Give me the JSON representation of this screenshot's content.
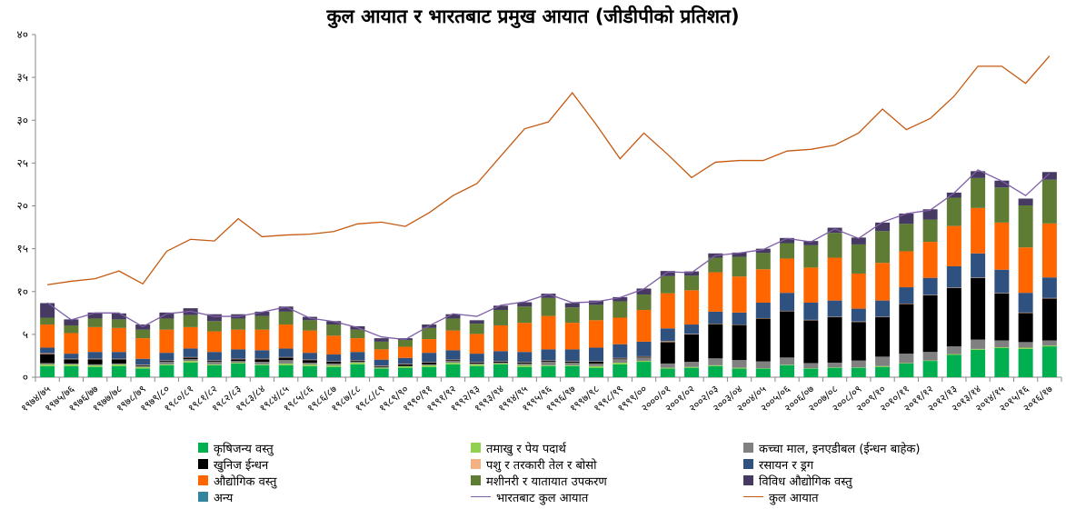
{
  "chart_data": {
    "type": "bar",
    "stacked": true,
    "title": "कुल आयात र भारतबाट प्रमुख आयात (जीडीपीको प्रतिशत)",
    "xlabel": "",
    "ylabel": "",
    "ylim": [
      0,
      40
    ],
    "yticks": [
      0,
      5,
      10,
      15,
      20,
      25,
      30,
      35,
      40
    ],
    "ytick_labels": [
      "०",
      "५",
      "१०",
      "१५",
      "२०",
      "२५",
      "३०",
      "३५",
      "४०"
    ],
    "grid": false,
    "legend_position": "bottom",
    "categories": [
      "१९७४/७५",
      "१९७५/७६",
      "१९७६/७७",
      "१९७७/७८",
      "१९७८/७९",
      "१९७९/८०",
      "१९८०/८१",
      "१९८१/८२",
      "१९८२/८३",
      "१९८३/८४",
      "१९८४/८५",
      "१९८५/८६",
      "१९८६/८७",
      "१९८७/८८",
      "१९८८/८९",
      "१९८९/९०",
      "१९९०/९१",
      "१९९१/९२",
      "१९९२/९३",
      "१९९३/९४",
      "१९९४/९५",
      "१९९५/९६",
      "१९९६/९७",
      "१९९७/९८",
      "१९९८/९९",
      "१९९९/००",
      "२०००/०१",
      "२००१/०२",
      "२००२/०३",
      "२००३/०४",
      "२००४/०५",
      "२००५/०६",
      "२००६/०७",
      "२००७/०८",
      "२००८/०९",
      "२००९/१०",
      "२०१०/११",
      "२०११/१२",
      "२०१२/१३",
      "२०१३/१४",
      "२०१४/१५",
      "२०१५/१६",
      "२०१६/१७"
    ],
    "series": [
      {
        "name": "कृषिजन्य वस्तु",
        "color": "#00b050",
        "values": [
          1.3,
          1.3,
          1.2,
          1.3,
          1.0,
          1.4,
          1.7,
          1.4,
          1.6,
          1.4,
          1.4,
          1.3,
          1.2,
          1.5,
          1.0,
          1.1,
          1.2,
          1.5,
          1.3,
          1.5,
          1.2,
          1.3,
          1.3,
          1.1,
          1.5,
          1.8,
          1.0,
          1.1,
          1.3,
          1.0,
          1.0,
          1.4,
          1.0,
          1.1,
          1.1,
          1.2,
          1.6,
          1.9,
          2.6,
          3.2,
          3.4,
          3.3,
          3.6
        ]
      },
      {
        "name": "तमाखु र पेय पदार्थ",
        "color": "#92d050",
        "values": [
          0.2,
          0.2,
          0.2,
          0.2,
          0.2,
          0.1,
          0.2,
          0.1,
          0.1,
          0.1,
          0.2,
          0.2,
          0.2,
          0.2,
          0.1,
          0.2,
          0.2,
          0.2,
          0.2,
          0.1,
          0.2,
          0.1,
          0.1,
          0.2,
          0.2,
          0.1,
          0.1,
          0.1,
          0.1,
          0.1,
          0.05,
          0.05,
          0.05,
          0.05,
          0.05,
          0.1,
          0.05,
          0.05,
          0.1,
          0.1,
          0.1,
          0.15,
          0.1
        ]
      },
      {
        "name": "कच्चा माल, इनएडीबल (ईन्धन बाहेक)",
        "color": "#808080",
        "values": [
          0.15,
          0.1,
          0.1,
          0.1,
          0.1,
          0.3,
          0.2,
          0.3,
          0.2,
          0.3,
          0.4,
          0.2,
          0.2,
          0.1,
          0.1,
          0.0,
          0.1,
          0.2,
          0.1,
          0.1,
          0.2,
          0.4,
          0.3,
          0.3,
          0.4,
          0.4,
          0.5,
          0.6,
          0.8,
          0.9,
          0.8,
          0.85,
          0.6,
          0.55,
          0.8,
          1.1,
          1.1,
          1.0,
          0.9,
          1.1,
          0.8,
          0.65,
          0.6
        ]
      },
      {
        "name": "खुनिज ईन्धन",
        "color": "#000000",
        "values": [
          1.05,
          0.5,
          0.6,
          0.5,
          0.1,
          0.1,
          0.2,
          0.1,
          0.2,
          0.3,
          0.3,
          0.3,
          0.2,
          0.1,
          0.1,
          0.2,
          0.2,
          0.1,
          0.1,
          0.1,
          0.1,
          0.1,
          0.1,
          0.2,
          0.1,
          0.1,
          2.5,
          3.2,
          4.0,
          4.1,
          5.0,
          5.4,
          5.0,
          5.3,
          4.5,
          4.6,
          5.8,
          6.6,
          6.8,
          7.2,
          5.5,
          3.4,
          4.9
        ]
      },
      {
        "name": "पशु र तरकारी तेल र बोसो",
        "color": "#f4b183",
        "values": [
          0.1,
          0.05,
          0.05,
          0.05,
          0.05,
          0.05,
          0.05,
          0.05,
          0.05,
          0.05,
          0.05,
          0.05,
          0.05,
          0.05,
          0.05,
          0.05,
          0.05,
          0.05,
          0.05,
          0.05,
          0.05,
          0.05,
          0.05,
          0.05,
          0.05,
          0.05,
          0.1,
          0.05,
          0.05,
          0.05,
          0.05,
          0.05,
          0.05,
          0.05,
          0.05,
          0.05,
          0.05,
          0.05,
          0.05,
          0.05,
          0.05,
          0.05,
          0.05
        ]
      },
      {
        "name": "रसायन र ड्रग",
        "color": "#2f5180",
        "values": [
          0.65,
          0.6,
          0.8,
          0.8,
          0.7,
          0.9,
          1.0,
          1.0,
          1.1,
          1.0,
          1.0,
          0.8,
          0.8,
          1.0,
          0.7,
          0.7,
          1.1,
          1.1,
          1.0,
          1.2,
          1.2,
          1.3,
          1.4,
          1.6,
          1.6,
          1.7,
          1.5,
          1.1,
          1.4,
          1.4,
          1.8,
          2.1,
          2.0,
          1.9,
          1.5,
          1.9,
          1.9,
          2.0,
          2.5,
          2.8,
          2.7,
          2.3,
          2.4
        ]
      },
      {
        "name": "औद्योगिक वस्तु",
        "color": "#ff6600",
        "values": [
          2.7,
          2.4,
          2.9,
          2.8,
          2.4,
          2.7,
          2.5,
          2.4,
          2.3,
          2.4,
          2.8,
          2.6,
          2.2,
          1.6,
          1.2,
          1.3,
          1.6,
          2.3,
          2.3,
          3.0,
          3.4,
          3.9,
          3.1,
          3.2,
          3.1,
          3.7,
          4.1,
          4.0,
          4.6,
          4.2,
          3.9,
          4.0,
          4.1,
          5.0,
          4.1,
          4.4,
          4.2,
          4.2,
          4.7,
          5.3,
          5.5,
          5.3,
          6.3
        ]
      },
      {
        "name": "मशीनरी र यातायात उपकरण",
        "color": "#5e7c33",
        "values": [
          0.8,
          0.9,
          1.0,
          1.0,
          1.0,
          1.3,
          1.4,
          1.2,
          1.3,
          1.6,
          1.5,
          1.2,
          1.3,
          1.0,
          0.9,
          0.8,
          1.3,
          1.4,
          1.2,
          1.8,
          1.9,
          2.1,
          1.8,
          1.8,
          1.9,
          1.8,
          2.0,
          1.7,
          1.7,
          2.3,
          1.9,
          1.8,
          2.6,
          2.9,
          3.4,
          3.7,
          3.2,
          2.6,
          3.3,
          3.5,
          4.1,
          4.9,
          5.1
        ]
      },
      {
        "name": "विविध औद्योगिक वस्तु",
        "color": "#463a62",
        "values": [
          1.7,
          0.7,
          0.7,
          0.7,
          0.6,
          0.7,
          0.8,
          0.8,
          0.5,
          0.5,
          0.6,
          0.4,
          0.4,
          0.4,
          0.4,
          0.2,
          0.4,
          0.5,
          0.4,
          0.5,
          0.5,
          0.5,
          0.5,
          0.5,
          0.5,
          0.7,
          0.6,
          0.5,
          0.5,
          0.5,
          0.5,
          0.6,
          0.5,
          0.6,
          0.8,
          1.0,
          1.2,
          1.2,
          0.6,
          0.8,
          0.8,
          0.8,
          0.9
        ]
      },
      {
        "name": "अन्य",
        "color": "#31859c",
        "values": [
          0,
          0,
          0,
          0,
          0,
          0,
          0,
          0,
          0,
          0,
          0,
          0,
          0,
          0,
          0,
          0,
          0,
          0,
          0,
          0,
          0,
          0,
          0,
          0,
          0,
          0,
          0,
          0,
          0,
          0,
          0,
          0,
          0,
          0,
          0,
          0,
          0,
          0,
          0,
          0,
          0,
          0,
          0
        ]
      }
    ],
    "lines": [
      {
        "name": "भारतबाट कुल आयात",
        "color": "#7f5fa8",
        "values": [
          8.7,
          6.7,
          7.5,
          7.5,
          5.9,
          7.4,
          7.7,
          7.1,
          7.1,
          7.6,
          8.2,
          6.9,
          6.5,
          5.8,
          4.7,
          4.4,
          6.0,
          7.4,
          7.1,
          8.4,
          8.8,
          9.7,
          8.7,
          8.8,
          9.3,
          10.3,
          12.3,
          12.2,
          14.2,
          14.5,
          14.9,
          16.2,
          15.8,
          17.3,
          16.2,
          18.1,
          19.1,
          19.5,
          21.5,
          24.2,
          22.9,
          21.2,
          23.8
        ]
      },
      {
        "name": "कुल आयात",
        "color": "#c55a11",
        "values": [
          10.8,
          11.2,
          11.5,
          12.4,
          10.9,
          14.7,
          16.1,
          15.9,
          18.5,
          16.4,
          16.6,
          16.7,
          17.0,
          17.9,
          18.1,
          17.6,
          19.2,
          21.2,
          22.6,
          25.8,
          29.0,
          29.8,
          33.2,
          29.5,
          25.5,
          28.5,
          26.0,
          23.3,
          25.1,
          25.3,
          25.3,
          26.4,
          26.6,
          27.1,
          28.5,
          31.3,
          28.9,
          30.2,
          32.8,
          36.3,
          36.3,
          34.3,
          37.5
        ]
      }
    ]
  }
}
